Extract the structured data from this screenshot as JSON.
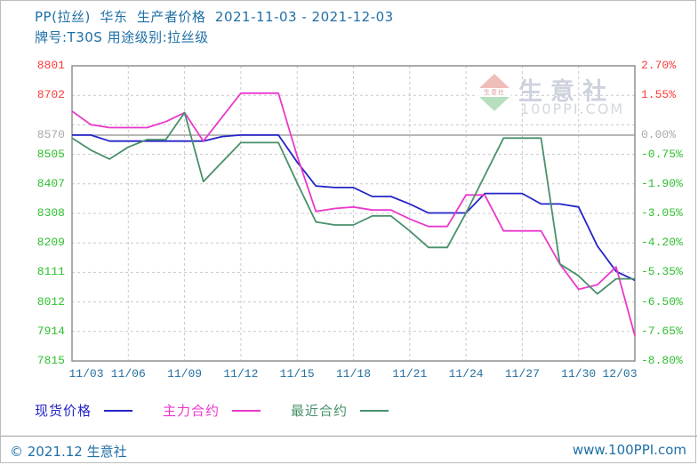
{
  "header": {
    "line1": "PP(拉丝)  华东  生产者价格  2021-11-03 - 2021-12-03",
    "line2": "牌号:T30S 用途级别:拉丝级"
  },
  "watermark": {
    "band_text": "生意社",
    "brand": "生意社",
    "site": "100PPI.COM"
  },
  "footer": {
    "copyright": "© 2021.12 生意社",
    "site": "www.100PPI.com"
  },
  "chart_data": {
    "type": "line",
    "title": "PP(拉丝) 华东 生产者价格 2021-11-03 - 2021-12-03",
    "subtitle": "牌号:T30S 用途级别:拉丝级",
    "grid": true,
    "legend_position": "bottom",
    "baseline_price": 8570,
    "ylim_percent": [
      -8.8,
      2.7
    ],
    "axis_colors": {
      "red": "#fa3c3c",
      "green": "#2fbf2f",
      "gray": "#a8a8a8",
      "xlabel": "#2470a0"
    },
    "y_ticks": [
      {
        "left": "8801",
        "right": "2.70%",
        "percent": 2.7,
        "color": "red"
      },
      {
        "left": "8702",
        "right": "1.55%",
        "percent": 1.55,
        "color": "red"
      },
      {
        "left": "",
        "right": "",
        "percent": 0.4,
        "color": "gray"
      },
      {
        "left": "8570",
        "right": "0.00%",
        "percent": 0.0,
        "color": "gray",
        "solid": true
      },
      {
        "left": "8505",
        "right": "-0.75%",
        "percent": -0.75,
        "color": "green"
      },
      {
        "left": "8407",
        "right": "-1.90%",
        "percent": -1.9,
        "color": "green"
      },
      {
        "left": "8308",
        "right": "-3.05%",
        "percent": -3.05,
        "color": "green"
      },
      {
        "left": "8209",
        "right": "-4.20%",
        "percent": -4.2,
        "color": "green"
      },
      {
        "left": "8111",
        "right": "-5.35%",
        "percent": -5.35,
        "color": "green"
      },
      {
        "left": "8012",
        "right": "-6.50%",
        "percent": -6.5,
        "color": "green"
      },
      {
        "left": "7914",
        "right": "-7.65%",
        "percent": -7.65,
        "color": "green"
      },
      {
        "left": "7815",
        "right": "-8.80%",
        "percent": -8.8,
        "color": "green"
      }
    ],
    "x": [
      "11/03",
      "11/04",
      "11/05",
      "11/06",
      "11/07",
      "11/08",
      "11/09",
      "11/10",
      "11/11",
      "11/12",
      "11/13",
      "11/14",
      "11/15",
      "11/16",
      "11/17",
      "11/18",
      "11/19",
      "11/20",
      "11/21",
      "11/22",
      "11/23",
      "11/24",
      "11/25",
      "11/26",
      "11/27",
      "11/28",
      "11/29",
      "11/30",
      "12/01",
      "12/02",
      "12/03"
    ],
    "x_tick_every": 3,
    "x_tick_labels": [
      "11/03",
      "11/06",
      "11/09",
      "11/12",
      "11/15",
      "11/18",
      "11/21",
      "11/24",
      "11/27",
      "11/30",
      "12/03"
    ],
    "series": [
      {
        "name": "现货价格",
        "color": "#2424c8",
        "values": [
          8570,
          8570,
          8550,
          8550,
          8550,
          8550,
          8550,
          8550,
          8565,
          8570,
          8570,
          8570,
          8480,
          8400,
          8395,
          8395,
          8365,
          8365,
          8340,
          8310,
          8310,
          8310,
          8375,
          8375,
          8375,
          8340,
          8340,
          8330,
          8200,
          8115,
          8085
        ]
      },
      {
        "name": "主力合约",
        "color": "#ea38cc",
        "values": [
          8650,
          8605,
          8595,
          8595,
          8595,
          8615,
          8645,
          8550,
          8630,
          8710,
          8710,
          8710,
          8500,
          8315,
          8325,
          8330,
          8320,
          8320,
          8290,
          8265,
          8265,
          8370,
          8370,
          8250,
          8250,
          8250,
          8140,
          8055,
          8070,
          8130,
          7900
        ]
      },
      {
        "name": "最近合约",
        "color": "#48906a",
        "values": [
          8560,
          8520,
          8490,
          8530,
          8555,
          8555,
          8645,
          8415,
          8480,
          8545,
          8545,
          8545,
          8410,
          8280,
          8270,
          8270,
          8300,
          8300,
          8250,
          8195,
          8195,
          8310,
          8435,
          8560,
          8560,
          8560,
          8140,
          8100,
          8040,
          8090,
          8090
        ]
      }
    ]
  }
}
